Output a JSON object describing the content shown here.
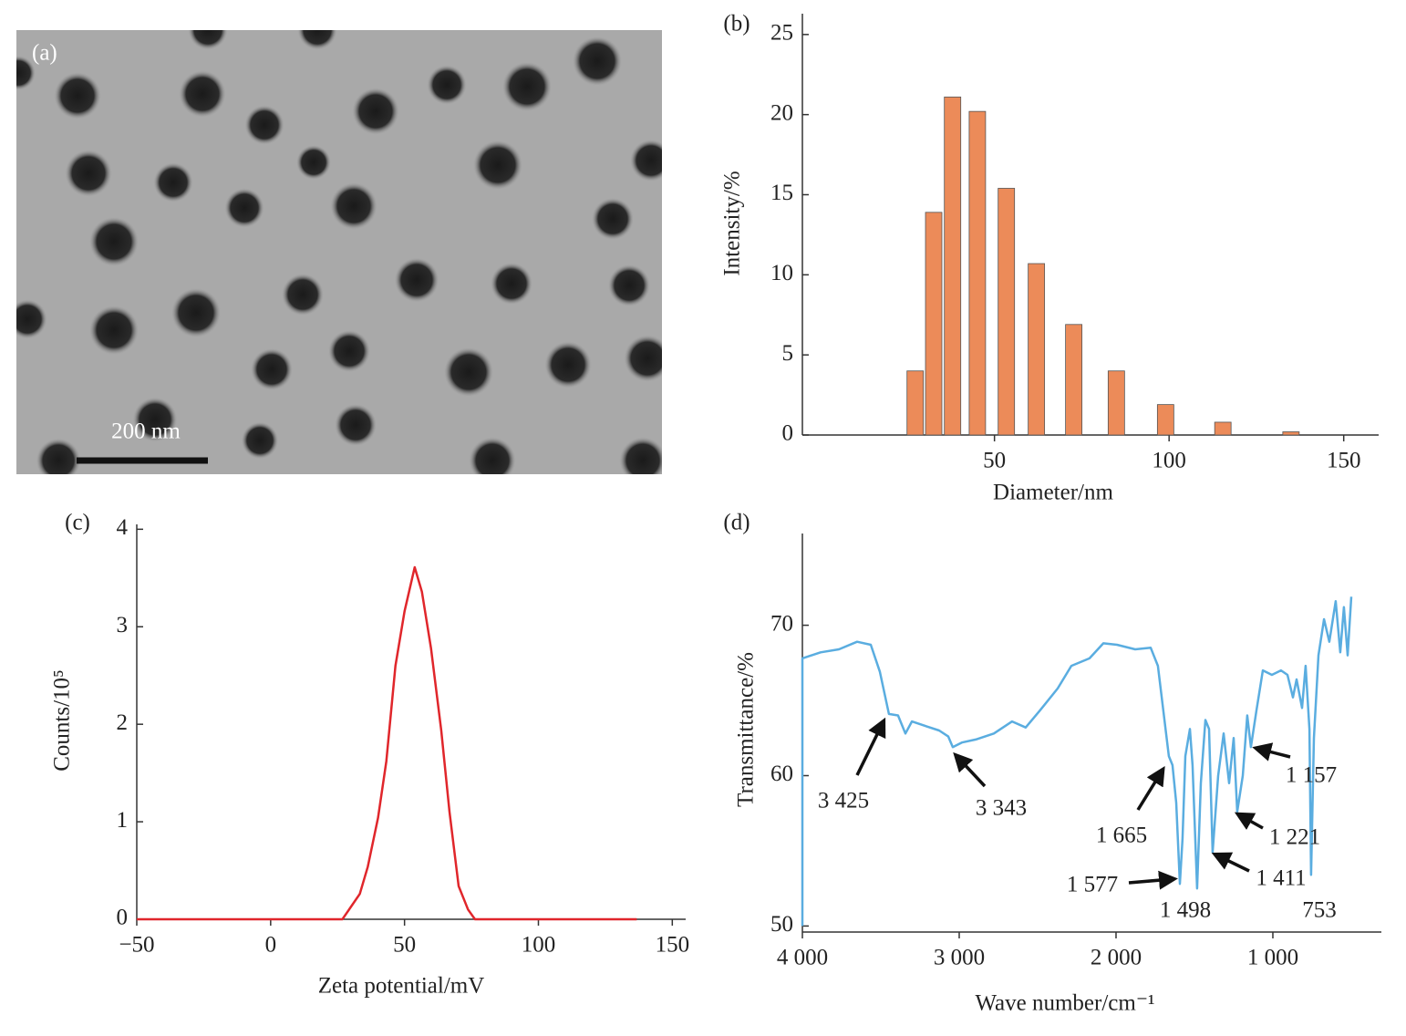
{
  "image": {
    "panel": "(a)",
    "scale_bar": "200 nm"
  },
  "chart_data": [
    {
      "type": "bar",
      "panel": "(b)",
      "xlabel": "Diameter/nm",
      "ylabel": "Intensity/%",
      "color": "#ec8b59",
      "x": [
        27.3,
        32.6,
        38.0,
        45.1,
        53.4,
        62.0,
        72.7,
        84.9,
        99.0,
        115.4,
        134.9
      ],
      "values": [
        4.0,
        13.9,
        21.1,
        20.2,
        15.4,
        10.7,
        6.9,
        4.0,
        1.9,
        0.8,
        0.2
      ],
      "xlim": [
        -5,
        160
      ],
      "ylim": [
        0,
        26.3
      ],
      "xticks": [
        50,
        100,
        150
      ],
      "yticks": [
        0,
        5,
        10,
        15,
        20,
        25
      ]
    },
    {
      "type": "line",
      "panel": "(c)",
      "xlabel": "Zeta potential/mV",
      "ylabel": "Counts/10⁵",
      "color": "#e0262b",
      "x": [
        -50,
        26.8,
        33.3,
        36.3,
        40.1,
        43.2,
        46.6,
        50,
        53.8,
        56.5,
        59.9,
        63.7,
        66.8,
        70.2,
        73.7,
        76.3,
        136.7
      ],
      "values": [
        0,
        0,
        0.26,
        0.54,
        1.04,
        1.62,
        2.6,
        3.16,
        3.61,
        3.36,
        2.78,
        1.94,
        1.1,
        0.34,
        0.1,
        0,
        0
      ],
      "xlim": [
        -50,
        155
      ],
      "ylim": [
        0,
        4.05
      ],
      "xticks": [
        {
          "value": -50,
          "label": "−50"
        },
        0,
        50,
        100,
        150
      ],
      "yticks": [
        0,
        1,
        2,
        3,
        4
      ]
    },
    {
      "type": "line",
      "panel": "(d)",
      "xlabel": "Wave number/cm⁻¹",
      "ylabel": "Transmittance/%",
      "color": "#5aade0",
      "x": [
        4000,
        4000,
        3884,
        3767,
        3651,
        3564,
        3506,
        3448,
        3390,
        3343,
        3302,
        3215,
        3128,
        3070,
        3041,
        2983,
        2895,
        2779,
        2663,
        2576,
        2488,
        2372,
        2285,
        2169,
        2081,
        1994,
        1878,
        1779,
        1733,
        1698,
        1663,
        1640,
        1616,
        1593,
        1576,
        1558,
        1529,
        1512,
        1483,
        1459,
        1430,
        1407,
        1384,
        1349,
        1314,
        1279,
        1250,
        1227,
        1192,
        1163,
        1140,
        1105,
        1064,
        1006,
        948,
        907,
        872,
        849,
        814,
        791,
        767,
        756,
        738,
        709,
        674,
        640,
        599,
        570,
        547,
        523,
        500
      ],
      "values": [
        50,
        67.8,
        68.2,
        68.4,
        68.9,
        68.7,
        66.9,
        64.1,
        64.0,
        62.8,
        63.6,
        63.3,
        63.0,
        62.6,
        61.9,
        62.2,
        62.4,
        62.8,
        63.6,
        63.2,
        64.3,
        65.8,
        67.3,
        67.8,
        68.8,
        68.7,
        68.4,
        68.5,
        67.3,
        64.3,
        61.3,
        60.7,
        58.2,
        52.8,
        55.8,
        61.3,
        63.1,
        60.7,
        52.5,
        59.5,
        63.7,
        63.1,
        54.9,
        60.0,
        62.8,
        59.5,
        62.5,
        57.6,
        60.0,
        64.0,
        61.9,
        64.3,
        67.0,
        66.7,
        67.0,
        66.7,
        65.2,
        66.4,
        64.5,
        67.3,
        63.1,
        53.4,
        62.5,
        68.0,
        70.4,
        68.9,
        71.6,
        68.2,
        71.2,
        68.0,
        71.9
      ],
      "xlim": [
        4000,
        308
      ],
      "ylim": [
        49.6,
        76.1
      ],
      "xticks": [
        {
          "value": 4000,
          "label": "4 000"
        },
        {
          "value": 3000,
          "label": "3 000"
        },
        {
          "value": 2000,
          "label": "2 000"
        },
        {
          "value": 1000,
          "label": "1 000"
        }
      ],
      "yticks": [
        50,
        60,
        70
      ],
      "annotations": [
        "3 425",
        "3 343",
        "1 665",
        "1 577",
        "1 498",
        "1 411",
        "1 221",
        "1 157",
        "753"
      ]
    }
  ]
}
